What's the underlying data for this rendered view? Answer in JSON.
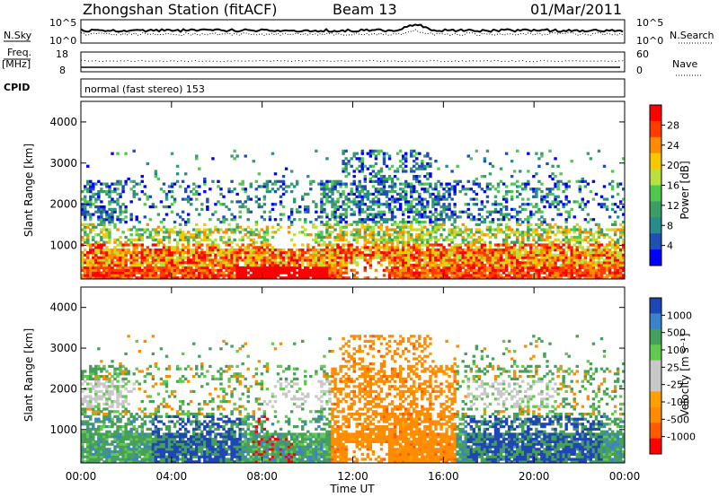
{
  "header": {
    "station": "Zhongshan Station (fitACF)",
    "beam": "Beam 13",
    "date": "01/Mar/2011"
  },
  "strip_panels": {
    "nsky_label": "N.Sky",
    "nsky_ticks": [
      "10^5",
      "10^0"
    ],
    "nsearch_label": "N.Search",
    "nsearch_ticks": [
      "10^5",
      "10^0"
    ],
    "freq_label": "Freq.",
    "freq_unit": "[MHz]",
    "freq_ticks": [
      "18",
      "8"
    ],
    "nave_label": "Nave",
    "nave_ticks": [
      "60",
      "0"
    ],
    "cpid_label": "CPID",
    "cpid_value": "normal (fast stereo) 153"
  },
  "chart_data": [
    {
      "type": "heatmap",
      "quantity": "Power",
      "colorbar_label": "Power [dB]",
      "ylabel": "Slant Range [km]",
      "y_ticks": [
        "4000",
        "3000",
        "2000",
        "1000"
      ],
      "ylim": [
        180,
        4500
      ],
      "xlabel": "Time UT",
      "x_ticks": [
        "00:00",
        "04:00",
        "08:00",
        "12:00",
        "16:00",
        "20:00",
        "00:00"
      ],
      "xlim_hours": [
        0,
        24
      ],
      "colorbar_ticks": [
        "28",
        "24",
        "20",
        "16",
        "12",
        "8",
        "4"
      ],
      "colorbar_colors": [
        "#ff0000",
        "#ff3c00",
        "#ff8c00",
        "#f5c800",
        "#b8e040",
        "#50c850",
        "#3c9c64",
        "#288c8c",
        "#1e50b4",
        "#0000ff"
      ]
    },
    {
      "type": "heatmap",
      "quantity": "Velocity",
      "colorbar_label": "Velocity [m s⁻¹]",
      "ylabel": "Slant Range [km]",
      "y_ticks": [
        "4000",
        "3000",
        "2000",
        "1000"
      ],
      "ylim": [
        180,
        4500
      ],
      "xlabel": "Time UT",
      "x_ticks": [
        "00:00",
        "04:00",
        "08:00",
        "12:00",
        "16:00",
        "20:00",
        "00:00"
      ],
      "xlim_hours": [
        0,
        24
      ],
      "colorbar_ticks": [
        "1000",
        "500",
        "100",
        "25",
        "-25",
        "-100",
        "-500",
        "-1000"
      ],
      "colorbar_colors": [
        "#1e46b4",
        "#3c82c8",
        "#46a05a",
        "#64c850",
        "#c8c8c8",
        "#c8c8c8",
        "#ffa000",
        "#ff8c00",
        "#ff5a00",
        "#ff0000"
      ]
    }
  ]
}
